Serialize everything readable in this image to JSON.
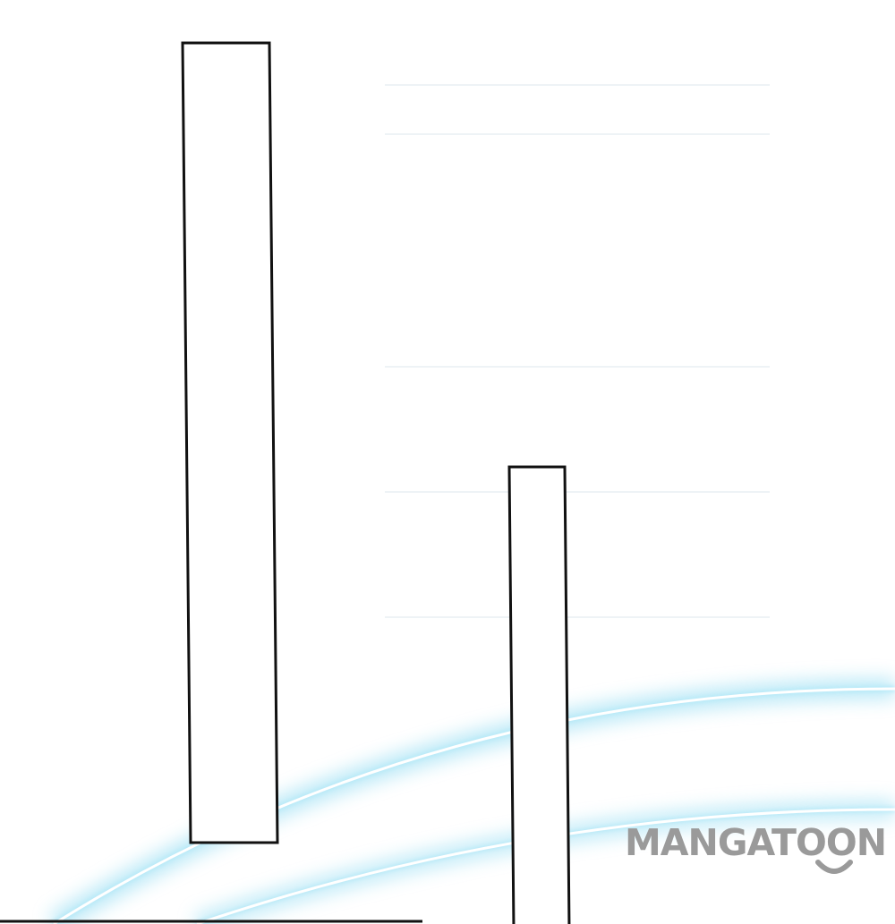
{
  "scene": {
    "background_color": "#ffffff",
    "glow_color": "#7fd6f0",
    "outline_color": "#111111"
  },
  "watermark": {
    "text": "MANGATOON",
    "color": "#9a9a9a",
    "icon": "smile-icon"
  }
}
